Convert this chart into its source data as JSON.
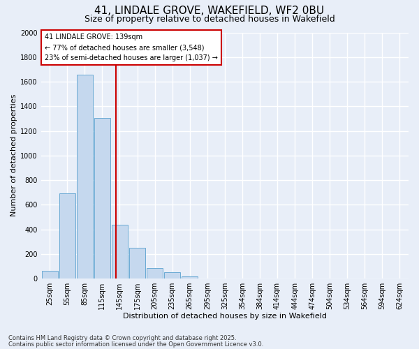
{
  "title_line1": "41, LINDALE GROVE, WAKEFIELD, WF2 0BU",
  "title_line2": "Size of property relative to detached houses in Wakefield",
  "xlabel": "Distribution of detached houses by size in Wakefield",
  "ylabel": "Number of detached properties",
  "bar_labels": [
    "25sqm",
    "55sqm",
    "85sqm",
    "115sqm",
    "145sqm",
    "175sqm",
    "205sqm",
    "235sqm",
    "265sqm",
    "295sqm",
    "325sqm",
    "354sqm",
    "384sqm",
    "414sqm",
    "444sqm",
    "474sqm",
    "504sqm",
    "534sqm",
    "564sqm",
    "594sqm",
    "624sqm"
  ],
  "bar_values": [
    65,
    695,
    1655,
    1305,
    435,
    250,
    88,
    50,
    20,
    0,
    0,
    0,
    0,
    0,
    0,
    0,
    0,
    0,
    0,
    0,
    0
  ],
  "bar_color": "#c5d8ee",
  "bar_edgecolor": "#6aaad4",
  "ylim": [
    0,
    2000
  ],
  "yticks": [
    0,
    200,
    400,
    600,
    800,
    1000,
    1200,
    1400,
    1600,
    1800,
    2000
  ],
  "vline_color": "#cc0000",
  "annotation_line1": "41 LINDALE GROVE: 139sqm",
  "annotation_line2": "← 77% of detached houses are smaller (3,548)",
  "annotation_line3": "23% of semi-detached houses are larger (1,037) →",
  "annotation_box_edgecolor": "#cc0000",
  "footnote_line1": "Contains HM Land Registry data © Crown copyright and database right 2025.",
  "footnote_line2": "Contains public sector information licensed under the Open Government Licence v3.0.",
  "background_color": "#e8eef8",
  "plot_bg_color": "#e8eef8",
  "grid_color": "#ffffff",
  "title_fontsize": 11,
  "subtitle_fontsize": 9,
  "axis_label_fontsize": 8,
  "tick_fontsize": 7,
  "annotation_fontsize": 7,
  "footnote_fontsize": 6
}
